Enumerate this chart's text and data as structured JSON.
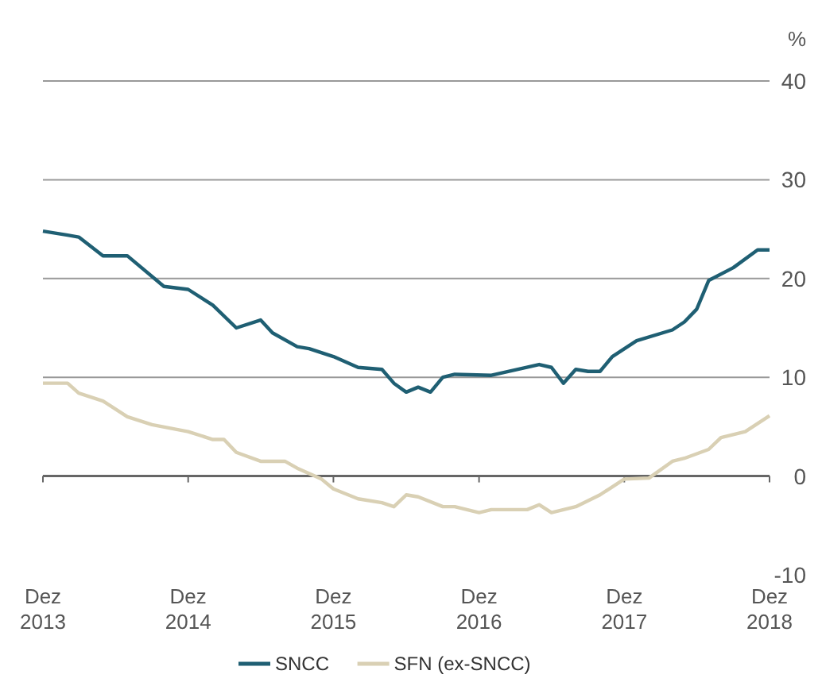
{
  "chart_data": {
    "type": "line",
    "ylabel": "%",
    "ylim": [
      -10,
      40
    ],
    "yticks": [
      -10,
      0,
      10,
      20,
      30,
      40
    ],
    "xlim": [
      "2013-12",
      "2018-12"
    ],
    "xticks": [
      {
        "value": "2013-12",
        "label": "Dez 2013"
      },
      {
        "value": "2014-12",
        "label": "Dez 2014"
      },
      {
        "value": "2015-12",
        "label": "Dez 2015"
      },
      {
        "value": "2016-12",
        "label": "Dez 2016"
      },
      {
        "value": "2017-12",
        "label": "Dez 2017"
      },
      {
        "value": "2018-12",
        "label": "Dez 2018"
      }
    ],
    "grid": "y",
    "legend": "bottom",
    "line_style": "solid",
    "marker": "none",
    "series": [
      {
        "name": "SNCC",
        "color": "#1f5f73",
        "x": [
          "2013-12",
          "2014-02",
          "2014-03",
          "2014-05",
          "2014-07",
          "2014-10",
          "2014-12",
          "2015-02",
          "2015-04",
          "2015-06",
          "2015-07",
          "2015-09",
          "2015-10",
          "2015-12",
          "2016-02",
          "2016-04",
          "2016-05",
          "2016-06",
          "2016-07",
          "2016-08",
          "2016-09",
          "2016-10",
          "2017-01",
          "2017-05",
          "2017-06",
          "2017-07",
          "2017-08",
          "2017-09",
          "2017-10",
          "2017-11",
          "2018-01",
          "2018-04",
          "2018-05",
          "2018-06",
          "2018-07",
          "2018-09",
          "2018-11",
          "2018-12"
        ],
        "values": [
          24.8,
          24.4,
          24.2,
          22.3,
          22.3,
          19.2,
          18.9,
          17.3,
          15.0,
          15.8,
          14.5,
          13.1,
          12.9,
          12.1,
          11.0,
          10.8,
          9.4,
          8.5,
          9.0,
          8.5,
          10.0,
          10.3,
          10.2,
          11.3,
          11.0,
          9.4,
          10.8,
          10.6,
          10.6,
          12.1,
          13.7,
          14.8,
          15.6,
          16.9,
          19.8,
          21.1,
          22.9,
          22.9
        ]
      },
      {
        "name": "SFN (ex-SNCC)",
        "color": "#d9d0b4",
        "x": [
          "2013-12",
          "2014-02",
          "2014-03",
          "2014-05",
          "2014-07",
          "2014-09",
          "2014-12",
          "2015-02",
          "2015-03",
          "2015-04",
          "2015-06",
          "2015-08",
          "2015-09",
          "2015-11",
          "2015-12",
          "2016-02",
          "2016-04",
          "2016-05",
          "2016-06",
          "2016-07",
          "2016-09",
          "2016-10",
          "2016-12",
          "2017-01",
          "2017-04",
          "2017-05",
          "2017-06",
          "2017-08",
          "2017-10",
          "2017-12",
          "2018-02",
          "2018-04",
          "2018-05",
          "2018-07",
          "2018-08",
          "2018-10",
          "2018-12"
        ],
        "values": [
          9.4,
          9.4,
          8.4,
          7.6,
          6.0,
          5.2,
          4.5,
          3.7,
          3.7,
          2.4,
          1.5,
          1.5,
          0.8,
          -0.3,
          -1.3,
          -2.3,
          -2.7,
          -3.1,
          -1.9,
          -2.1,
          -3.1,
          -3.1,
          -3.7,
          -3.4,
          -3.4,
          -2.9,
          -3.7,
          -3.1,
          -1.9,
          -0.3,
          -0.2,
          1.5,
          1.8,
          2.7,
          3.9,
          4.5,
          6.1
        ]
      }
    ]
  }
}
